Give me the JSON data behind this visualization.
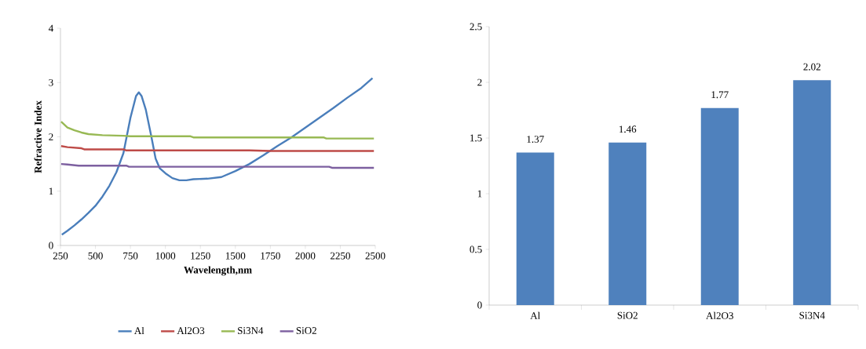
{
  "chart_data": [
    {
      "type": "line",
      "xlabel": "Wavelength,nm",
      "ylabel": "Refractive Index",
      "xlim": [
        250,
        2500
      ],
      "ylim": [
        0,
        4
      ],
      "xticks": [
        250,
        500,
        750,
        1000,
        1250,
        1500,
        1750,
        2000,
        2250,
        2500
      ],
      "yticks": [
        0,
        1,
        2,
        3,
        4
      ],
      "legend": "bottom",
      "grid": false,
      "series": [
        {
          "name": "Al",
          "color": "#4a7ebb",
          "x": [
            260,
            300,
            350,
            400,
            450,
            500,
            550,
            600,
            650,
            700,
            750,
            790,
            810,
            830,
            860,
            900,
            930,
            960,
            1000,
            1050,
            1100,
            1150,
            1200,
            1300,
            1400,
            1500,
            1600,
            1700,
            1800,
            1900,
            2000,
            2100,
            2200,
            2300,
            2400,
            2480
          ],
          "values": [
            0.2,
            0.27,
            0.37,
            0.48,
            0.6,
            0.73,
            0.9,
            1.1,
            1.35,
            1.7,
            2.35,
            2.75,
            2.82,
            2.75,
            2.5,
            2.0,
            1.6,
            1.42,
            1.33,
            1.24,
            1.2,
            1.2,
            1.22,
            1.23,
            1.26,
            1.37,
            1.5,
            1.66,
            1.83,
            1.99,
            2.17,
            2.35,
            2.53,
            2.72,
            2.9,
            3.08
          ]
        },
        {
          "name": "Al2O3",
          "color": "#be4b48",
          "x": [
            255,
            300,
            400,
            420,
            700,
            720,
            1600,
            1750,
            2490
          ],
          "values": [
            1.83,
            1.81,
            1.79,
            1.77,
            1.77,
            1.75,
            1.75,
            1.74,
            1.74
          ]
        },
        {
          "name": "Si3N4",
          "color": "#98b954",
          "x": [
            255,
            300,
            350,
            400,
            450,
            550,
            700,
            750,
            1180,
            1200,
            2130,
            2150,
            2490
          ],
          "values": [
            2.28,
            2.17,
            2.12,
            2.08,
            2.05,
            2.03,
            2.02,
            2.01,
            2.01,
            1.99,
            1.99,
            1.97,
            1.97
          ]
        },
        {
          "name": "SiO2",
          "color": "#7d60a0",
          "x": [
            255,
            300,
            380,
            720,
            740,
            2170,
            2190,
            2490
          ],
          "values": [
            1.5,
            1.49,
            1.47,
            1.47,
            1.45,
            1.45,
            1.43,
            1.43
          ]
        }
      ]
    },
    {
      "type": "bar",
      "categories": [
        "Al",
        "SiO2",
        "Al2O3",
        "Si3N4"
      ],
      "values": [
        1.37,
        1.46,
        1.77,
        2.02
      ],
      "value_labels": [
        "1.37",
        "1.46",
        "1.77",
        "2.02"
      ],
      "color": "#4f81bd",
      "ylim": [
        0,
        2.5
      ],
      "yticks": [
        0,
        0.5,
        1,
        1.5,
        2,
        2.5
      ],
      "grid": false
    }
  ]
}
